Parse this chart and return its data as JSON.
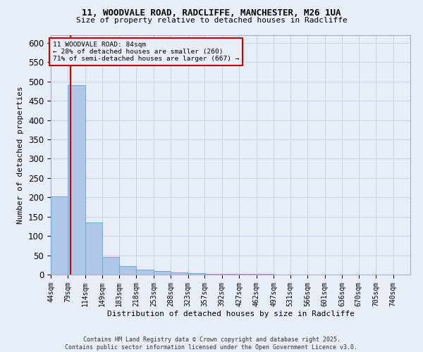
{
  "title1": "11, WOODVALE ROAD, RADCLIFFE, MANCHESTER, M26 1UA",
  "title2": "Size of property relative to detached houses in Radcliffe",
  "xlabel": "Distribution of detached houses by size in Radcliffe",
  "ylabel": "Number of detached properties",
  "footer": "Contains HM Land Registry data © Crown copyright and database right 2025.\nContains public sector information licensed under the Open Government Licence v3.0.",
  "bin_labels": [
    "44sqm",
    "79sqm",
    "114sqm",
    "149sqm",
    "183sqm",
    "218sqm",
    "253sqm",
    "288sqm",
    "323sqm",
    "357sqm",
    "392sqm",
    "427sqm",
    "462sqm",
    "497sqm",
    "531sqm",
    "566sqm",
    "601sqm",
    "636sqm",
    "670sqm",
    "705sqm",
    "740sqm"
  ],
  "bar_values": [
    202,
    490,
    135,
    45,
    22,
    12,
    10,
    5,
    3,
    2,
    1,
    1,
    1,
    0,
    0,
    0,
    0,
    0,
    0,
    0,
    0
  ],
  "bar_color": "#aec6e8",
  "bar_edge_color": "#6aaad4",
  "grid_color": "#c8d4e8",
  "background_color": "#e8eef8",
  "property_size": 84,
  "annotation_line1": "11 WOODVALE ROAD: 84sqm",
  "annotation_line2": "← 28% of detached houses are smaller (260)",
  "annotation_line3": "71% of semi-detached houses are larger (667) →",
  "red_line_color": "#cc0000",
  "annotation_box_color": "#cc0000",
  "ylim": [
    0,
    620
  ],
  "yticks": [
    0,
    50,
    100,
    150,
    200,
    250,
    300,
    350,
    400,
    450,
    500,
    550,
    600
  ],
  "bin_width": 35
}
